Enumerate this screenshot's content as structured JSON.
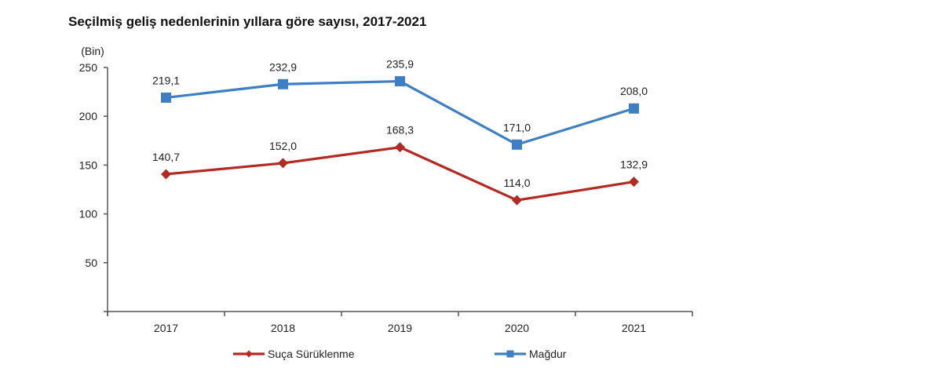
{
  "chart_data": {
    "type": "line",
    "title": "Seçilmiş geliş nedenlerinin yıllara göre sayısı, 2017-2021",
    "xlabel": "",
    "ylabel": "(Bin)",
    "categories": [
      "2017",
      "2018",
      "2019",
      "2020",
      "2021"
    ],
    "ylim": [
      0,
      250
    ],
    "yticks": [
      50,
      100,
      150,
      200,
      250
    ],
    "grid": false,
    "legend_position": "bottom",
    "series": [
      {
        "name": "Suça Sürüklenme",
        "values": [
          140.7,
          152.0,
          168.3,
          114.0,
          132.9
        ],
        "labels": [
          "140,7",
          "152,0",
          "168,3",
          "114,0",
          "132,9"
        ],
        "color": "#b22a22",
        "marker": "diamond"
      },
      {
        "name": "Mağdur",
        "values": [
          219.1,
          232.9,
          235.9,
          171.0,
          208.0
        ],
        "labels": [
          "219,1",
          "232,9",
          "235,9",
          "171,0",
          "208,0"
        ],
        "color": "#3e7fc4",
        "marker": "square"
      }
    ]
  }
}
